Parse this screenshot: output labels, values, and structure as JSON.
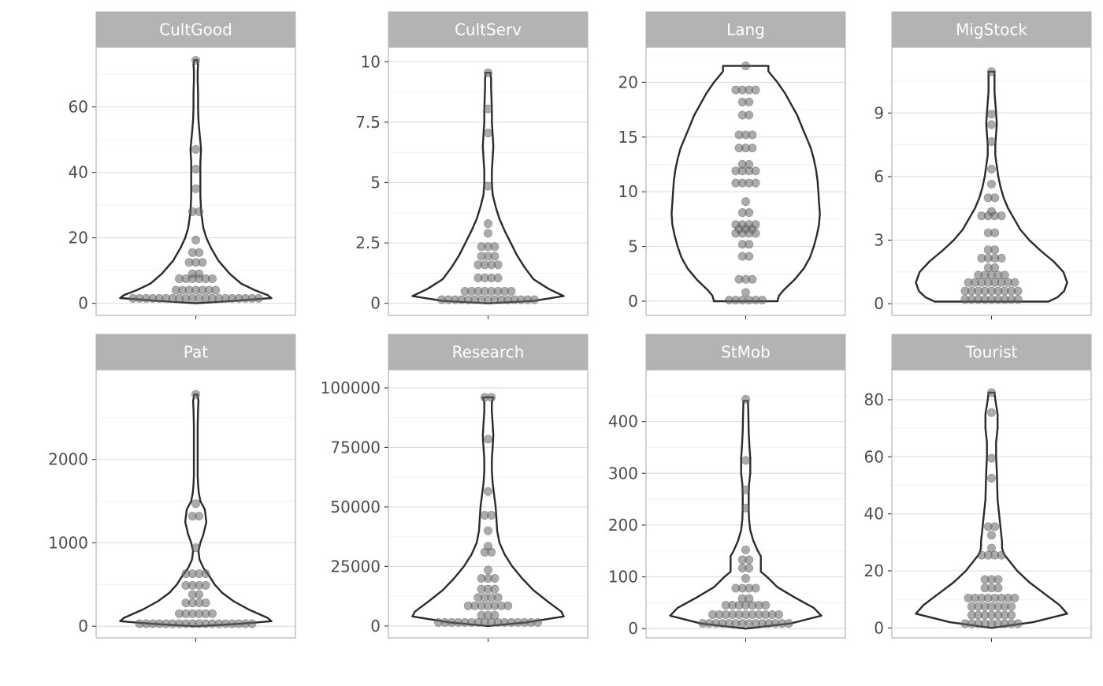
{
  "chart_data": {
    "type": "violin",
    "facets": [
      {
        "label": "CultGood",
        "yticks": [
          0,
          20,
          40,
          60
        ],
        "ylim": [
          -3.7,
          78.2
        ],
        "violin": [
          [
            0,
            0
          ],
          [
            0.8,
            0.55
          ],
          [
            1.6,
            1
          ],
          [
            2.5,
            0.95
          ],
          [
            4,
            0.78
          ],
          [
            6,
            0.6
          ],
          [
            9,
            0.45
          ],
          [
            13,
            0.3
          ],
          [
            17,
            0.2
          ],
          [
            20,
            0.14
          ],
          [
            23,
            0.1
          ],
          [
            28,
            0.07
          ],
          [
            33,
            0.06
          ],
          [
            38,
            0.06
          ],
          [
            43,
            0.06
          ],
          [
            47,
            0.07
          ],
          [
            52,
            0.05
          ],
          [
            56,
            0.035
          ],
          [
            60,
            0.03
          ],
          [
            64,
            0.03
          ],
          [
            68,
            0.025
          ],
          [
            71,
            0.025
          ],
          [
            73,
            0.03
          ],
          [
            74.3,
            0.02
          ]
        ],
        "points": [
          [
            74.2,
            1
          ],
          [
            47,
            1
          ],
          [
            41,
            1
          ],
          [
            35,
            1
          ],
          [
            28,
            2
          ],
          [
            19.3,
            1
          ],
          [
            15.5,
            2
          ],
          [
            12.5,
            3
          ],
          [
            9,
            2
          ],
          [
            7.5,
            6
          ],
          [
            4,
            7
          ],
          [
            1.5,
            20
          ]
        ]
      },
      {
        "label": "CultServ",
        "yticks": [
          0.0,
          2.5,
          5.0,
          7.5,
          10.0
        ],
        "ylim": [
          -0.5,
          10.6
        ],
        "violin": [
          [
            0,
            0
          ],
          [
            0.1,
            0.6
          ],
          [
            0.3,
            1
          ],
          [
            0.6,
            0.8
          ],
          [
            1,
            0.6
          ],
          [
            1.5,
            0.48
          ],
          [
            2,
            0.38
          ],
          [
            2.5,
            0.3
          ],
          [
            3,
            0.22
          ],
          [
            3.5,
            0.15
          ],
          [
            4,
            0.1
          ],
          [
            4.5,
            0.06
          ],
          [
            5,
            0.05
          ],
          [
            5.5,
            0.05
          ],
          [
            6,
            0.06
          ],
          [
            6.5,
            0.07
          ],
          [
            7,
            0.06
          ],
          [
            7.5,
            0.05
          ],
          [
            8,
            0.05
          ],
          [
            8.5,
            0.045
          ],
          [
            9,
            0.04
          ],
          [
            9.3,
            0.04
          ],
          [
            9.55,
            0.03
          ]
        ],
        "points": [
          [
            9.55,
            1
          ],
          [
            8.05,
            1
          ],
          [
            7.05,
            1
          ],
          [
            4.85,
            1
          ],
          [
            3.3,
            1
          ],
          [
            2.9,
            1
          ],
          [
            2.35,
            3
          ],
          [
            1.95,
            3
          ],
          [
            1.6,
            4
          ],
          [
            1.05,
            4
          ],
          [
            0.5,
            8
          ],
          [
            0.15,
            15
          ]
        ]
      },
      {
        "label": "Lang",
        "yticks": [
          0,
          5,
          10,
          15,
          20
        ],
        "ylim": [
          -1.3,
          23.2
        ],
        "violin": [
          [
            0,
            0.42
          ],
          [
            0.5,
            0.44
          ],
          [
            1,
            0.5
          ],
          [
            2,
            0.65
          ],
          [
            3,
            0.77
          ],
          [
            4,
            0.85
          ],
          [
            5,
            0.9
          ],
          [
            6,
            0.94
          ],
          [
            7,
            0.97
          ],
          [
            8,
            0.98
          ],
          [
            9,
            0.97
          ],
          [
            10,
            0.96
          ],
          [
            11,
            0.95
          ],
          [
            12,
            0.93
          ],
          [
            13,
            0.9
          ],
          [
            14,
            0.86
          ],
          [
            15,
            0.8
          ],
          [
            16,
            0.74
          ],
          [
            17,
            0.68
          ],
          [
            18,
            0.6
          ],
          [
            19,
            0.52
          ],
          [
            20,
            0.42
          ],
          [
            21,
            0.3
          ],
          [
            21.5,
            0.3
          ]
        ],
        "points": [
          [
            21.5,
            1
          ],
          [
            19.3,
            4
          ],
          [
            18.2,
            2
          ],
          [
            17,
            2
          ],
          [
            15.2,
            3
          ],
          [
            14,
            3
          ],
          [
            12.5,
            2
          ],
          [
            11.9,
            4
          ],
          [
            10.8,
            4
          ],
          [
            9.1,
            1
          ],
          [
            8.1,
            2
          ],
          [
            7,
            4
          ],
          [
            6.6,
            3
          ],
          [
            6.2,
            4
          ],
          [
            5.2,
            2
          ],
          [
            4.1,
            2
          ],
          [
            2,
            3
          ],
          [
            0.8,
            1
          ],
          [
            0.1,
            6
          ]
        ]
      },
      {
        "label": "MigStock",
        "yticks": [
          0,
          3,
          6,
          9
        ],
        "ylim": [
          -0.55,
          12.1
        ],
        "violin": [
          [
            0.1,
            0.75
          ],
          [
            0.3,
            0.87
          ],
          [
            0.6,
            0.96
          ],
          [
            1,
            1
          ],
          [
            1.5,
            0.95
          ],
          [
            2,
            0.82
          ],
          [
            2.5,
            0.65
          ],
          [
            3,
            0.5
          ],
          [
            3.5,
            0.38
          ],
          [
            4,
            0.3
          ],
          [
            4.5,
            0.22
          ],
          [
            5,
            0.16
          ],
          [
            5.5,
            0.12
          ],
          [
            6,
            0.09
          ],
          [
            6.5,
            0.07
          ],
          [
            7,
            0.05
          ],
          [
            7.5,
            0.05
          ],
          [
            8,
            0.06
          ],
          [
            8.5,
            0.07
          ],
          [
            9,
            0.06
          ],
          [
            9.5,
            0.05
          ],
          [
            10,
            0.04
          ],
          [
            10.5,
            0.04
          ],
          [
            10.95,
            0.04
          ]
        ],
        "points": [
          [
            10.95,
            1
          ],
          [
            8.95,
            1
          ],
          [
            8.45,
            1
          ],
          [
            7.65,
            1
          ],
          [
            6.35,
            1
          ],
          [
            5.65,
            1
          ],
          [
            5,
            2
          ],
          [
            4.35,
            1
          ],
          [
            4.15,
            4
          ],
          [
            3.35,
            2
          ],
          [
            2.55,
            2
          ],
          [
            2.15,
            4
          ],
          [
            1.7,
            2
          ],
          [
            1.35,
            5
          ],
          [
            1,
            8
          ],
          [
            0.6,
            9
          ],
          [
            0.2,
            9
          ]
        ]
      },
      {
        "label": "Pat",
        "yticks": [
          0,
          1000,
          2000
        ],
        "ylim": [
          -140,
          3075
        ],
        "violin": [
          [
            0,
            0
          ],
          [
            30,
            0.6
          ],
          [
            60,
            1
          ],
          [
            100,
            0.95
          ],
          [
            200,
            0.7
          ],
          [
            300,
            0.5
          ],
          [
            400,
            0.35
          ],
          [
            500,
            0.25
          ],
          [
            600,
            0.18
          ],
          [
            700,
            0.1
          ],
          [
            800,
            0.05
          ],
          [
            900,
            0.035
          ],
          [
            1000,
            0.06
          ],
          [
            1100,
            0.1
          ],
          [
            1250,
            0.14
          ],
          [
            1400,
            0.12
          ],
          [
            1500,
            0.06
          ],
          [
            1600,
            0.04
          ],
          [
            1700,
            0.03
          ],
          [
            1800,
            0.025
          ],
          [
            2000,
            0.025
          ],
          [
            2200,
            0.025
          ],
          [
            2400,
            0.025
          ],
          [
            2600,
            0.03
          ],
          [
            2700,
            0.035
          ],
          [
            2780,
            0.02
          ]
        ],
        "points": [
          [
            2780,
            1
          ],
          [
            1470,
            1
          ],
          [
            1320,
            2
          ],
          [
            940,
            1
          ],
          [
            630,
            4
          ],
          [
            490,
            4
          ],
          [
            380,
            2
          ],
          [
            280,
            4
          ],
          [
            150,
            6
          ],
          [
            30,
            18
          ]
        ]
      },
      {
        "label": "Research",
        "yticks": [
          0,
          25000,
          50000,
          75000,
          100000
        ],
        "ylim": [
          -5000,
          107600
        ],
        "violin": [
          [
            0,
            0
          ],
          [
            1500,
            0.5
          ],
          [
            4000,
            1
          ],
          [
            6000,
            0.97
          ],
          [
            10000,
            0.8
          ],
          [
            15000,
            0.6
          ],
          [
            20000,
            0.45
          ],
          [
            25000,
            0.32
          ],
          [
            30000,
            0.22
          ],
          [
            35000,
            0.15
          ],
          [
            40000,
            0.12
          ],
          [
            45000,
            0.11
          ],
          [
            50000,
            0.1
          ],
          [
            55000,
            0.08
          ],
          [
            60000,
            0.06
          ],
          [
            65000,
            0.05
          ],
          [
            70000,
            0.05
          ],
          [
            75000,
            0.06
          ],
          [
            80000,
            0.07
          ],
          [
            85000,
            0.06
          ],
          [
            90000,
            0.05
          ],
          [
            94000,
            0.05
          ],
          [
            96000,
            0.07
          ]
        ],
        "points": [
          [
            96000,
            2
          ],
          [
            78500,
            1
          ],
          [
            56500,
            1
          ],
          [
            46500,
            2
          ],
          [
            40000,
            1
          ],
          [
            33500,
            1
          ],
          [
            31000,
            2
          ],
          [
            23500,
            1
          ],
          [
            20000,
            3
          ],
          [
            15500,
            3
          ],
          [
            12000,
            4
          ],
          [
            8500,
            7
          ],
          [
            4500,
            3
          ],
          [
            1500,
            16
          ]
        ]
      },
      {
        "label": "StMob",
        "yticks": [
          0,
          100,
          200,
          300,
          400
        ],
        "ylim": [
          -18,
          500
        ],
        "violin": [
          [
            0,
            0
          ],
          [
            10,
            0.6
          ],
          [
            25,
            1
          ],
          [
            40,
            0.9
          ],
          [
            60,
            0.65
          ],
          [
            80,
            0.42
          ],
          [
            100,
            0.28
          ],
          [
            110,
            0.2
          ],
          [
            120,
            0.2
          ],
          [
            140,
            0.2
          ],
          [
            150,
            0.16
          ],
          [
            170,
            0.1
          ],
          [
            190,
            0.06
          ],
          [
            210,
            0.045
          ],
          [
            230,
            0.04
          ],
          [
            260,
            0.04
          ],
          [
            280,
            0.045
          ],
          [
            300,
            0.06
          ],
          [
            330,
            0.06
          ],
          [
            350,
            0.05
          ],
          [
            380,
            0.04
          ],
          [
            410,
            0.035
          ],
          [
            440,
            0.03
          ]
        ],
        "points": [
          [
            443,
            1
          ],
          [
            325,
            1
          ],
          [
            268,
            1
          ],
          [
            233,
            1
          ],
          [
            152,
            1
          ],
          [
            133,
            2
          ],
          [
            117,
            2
          ],
          [
            97,
            1
          ],
          [
            78,
            4
          ],
          [
            58,
            2
          ],
          [
            45,
            7
          ],
          [
            27,
            11
          ],
          [
            10,
            14
          ]
        ]
      },
      {
        "label": "Tourist",
        "yticks": [
          0,
          20,
          40,
          60,
          80
        ],
        "ylim": [
          -3.5,
          90.5
        ],
        "violin": [
          [
            0,
            0
          ],
          [
            2,
            0.55
          ],
          [
            5,
            1
          ],
          [
            8,
            0.9
          ],
          [
            12,
            0.7
          ],
          [
            16,
            0.5
          ],
          [
            20,
            0.34
          ],
          [
            24,
            0.22
          ],
          [
            26,
            0.16
          ],
          [
            28,
            0.14
          ],
          [
            30,
            0.14
          ],
          [
            35,
            0.12
          ],
          [
            40,
            0.1
          ],
          [
            45,
            0.08
          ],
          [
            50,
            0.075
          ],
          [
            55,
            0.07
          ],
          [
            60,
            0.06
          ],
          [
            65,
            0.06
          ],
          [
            70,
            0.08
          ],
          [
            75,
            0.08
          ],
          [
            80,
            0.05
          ],
          [
            82.5,
            0.04
          ]
        ],
        "points": [
          [
            82.5,
            1
          ],
          [
            75.5,
            1
          ],
          [
            59.5,
            1
          ],
          [
            52.5,
            1
          ],
          [
            35.5,
            2
          ],
          [
            32.5,
            1
          ],
          [
            28,
            1
          ],
          [
            25.5,
            4
          ],
          [
            17,
            3
          ],
          [
            14,
            3
          ],
          [
            10.5,
            8
          ],
          [
            7.5,
            7
          ],
          [
            4.5,
            7
          ],
          [
            1.5,
            9
          ]
        ]
      }
    ]
  }
}
